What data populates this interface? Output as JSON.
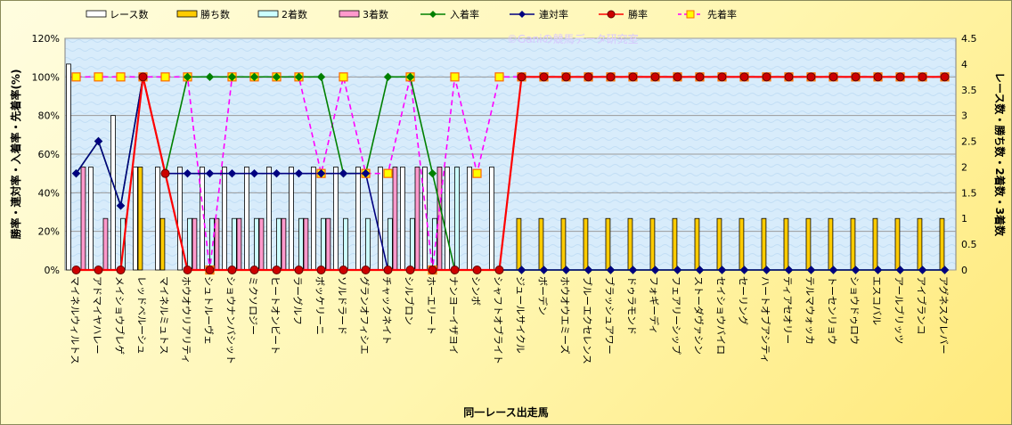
{
  "chart_data": {
    "type": "bar",
    "xlabel": "同一レース出走馬",
    "ylabel_left": "勝率・連対率・入着率・先着率(%)",
    "ylabel_right": "レース数・勝ち数・2着数・3着数",
    "watermark": "©Ganiの競馬データ研究室",
    "ylim_left": [
      0,
      120
    ],
    "ylim_right": [
      0,
      4.5
    ],
    "yticks_left": [
      "0%",
      "20%",
      "40%",
      "60%",
      "80%",
      "100%",
      "120%"
    ],
    "yticks_right": [
      "0",
      "0.5",
      "1",
      "1.5",
      "2",
      "2.5",
      "3",
      "3.5",
      "4",
      "4.5"
    ],
    "grid": true,
    "legend_position": "top",
    "legend": [
      "レース数",
      "勝ち数",
      "2着数",
      "3着数",
      "入着率",
      "連対率",
      "勝率",
      "先着率"
    ],
    "categories": [
      "マイネルウィルトス",
      "アドマイヤハレー",
      "メイショウブレゲ",
      "レッドベルーシュ",
      "マイネルミュトス",
      "ホウオウリアリティ",
      "シュトルーヴェ",
      "ショウナンバシット",
      "ミクソロジー",
      "ヒートオンビート",
      "ラーグルフ",
      "ボッケリーニ",
      "ソルドラード",
      "グランオフィシエ",
      "チャックネイト",
      "シルブロン",
      "ホーエリート",
      "ナンヨーイザヨイ",
      "シンボ",
      "シャフトオブライト",
      "ジュールサイクル",
      "ボーデン",
      "ホウオウエミーズ",
      "ブルーエクセレンス",
      "ブラッシュアワー",
      "ドゥラモンド",
      "フォギーディ",
      "フェアリーシップ",
      "ストーダヴァシン",
      "セイショウバイロ",
      "セーリング",
      "ハートオブアシティ",
      "ティアセオリー",
      "テルマウォッカ",
      "トーセンリョウ",
      "ショウドゥロウ",
      "エスコバル",
      "アールブリッツ",
      "アイブランコ",
      "アグネスクレバー"
    ],
    "series": [
      {
        "name": "レース数",
        "axis": "right",
        "kind": "bar",
        "color": "#ffffff",
        "values": [
          4,
          2,
          3,
          2,
          2,
          2,
          2,
          2,
          2,
          2,
          2,
          2,
          2,
          2,
          2,
          2,
          2,
          2,
          2,
          2,
          0,
          0,
          0,
          0,
          0,
          0,
          0,
          0,
          0,
          0,
          0,
          0,
          0,
          0,
          0,
          0,
          0,
          0,
          0,
          0
        ]
      },
      {
        "name": "勝ち数",
        "axis": "right",
        "kind": "bar",
        "color": "#ffcc00",
        "values": [
          0,
          0,
          0,
          2,
          1,
          0,
          0,
          0,
          0,
          0,
          0,
          0,
          0,
          0,
          0,
          0,
          0,
          0,
          0,
          0,
          1,
          1,
          1,
          1,
          1,
          1,
          1,
          1,
          1,
          1,
          1,
          1,
          1,
          1,
          1,
          1,
          1,
          1,
          1,
          1
        ]
      },
      {
        "name": "2着数",
        "axis": "right",
        "kind": "bar",
        "color": "#ccffff",
        "values": [
          0,
          0,
          1,
          0,
          0,
          1,
          1,
          1,
          1,
          1,
          1,
          1,
          1,
          1,
          1,
          1,
          1,
          2,
          0,
          0,
          0,
          0,
          0,
          0,
          0,
          0,
          0,
          0,
          0,
          0,
          0,
          0,
          0,
          0,
          0,
          0,
          0,
          0,
          0,
          0
        ]
      },
      {
        "name": "3着数",
        "axis": "right",
        "kind": "bar",
        "color": "#ff99cc",
        "values": [
          2,
          1,
          0,
          0,
          0,
          1,
          1,
          1,
          1,
          1,
          1,
          1,
          0,
          0,
          2,
          2,
          2,
          0,
          0,
          0,
          0,
          0,
          0,
          0,
          0,
          0,
          0,
          0,
          0,
          0,
          0,
          0,
          0,
          0,
          0,
          0,
          0,
          0,
          0,
          0
        ]
      },
      {
        "name": "入着率",
        "axis": "left",
        "kind": "line",
        "color": "#008000",
        "marker": "diamond",
        "values": [
          50,
          66.7,
          33.3,
          100,
          50,
          100,
          100,
          100,
          100,
          100,
          100,
          100,
          50,
          50,
          100,
          100,
          50,
          0,
          0,
          0,
          0,
          0,
          0,
          0,
          0,
          0,
          0,
          0,
          0,
          0,
          0,
          0,
          0,
          0,
          0,
          0,
          0,
          0,
          0,
          0
        ]
      },
      {
        "name": "連対率",
        "axis": "left",
        "kind": "line",
        "color": "#000080",
        "marker": "diamond",
        "values": [
          50,
          66.7,
          33.3,
          100,
          50,
          50,
          50,
          50,
          50,
          50,
          50,
          50,
          50,
          50,
          0,
          0,
          0,
          0,
          0,
          0,
          0,
          0,
          0,
          0,
          0,
          0,
          0,
          0,
          0,
          0,
          0,
          0,
          0,
          0,
          0,
          0,
          0,
          0,
          0,
          0
        ]
      },
      {
        "name": "勝率",
        "axis": "left",
        "kind": "line",
        "color": "#ff0000",
        "marker": "circle",
        "values": [
          0,
          0,
          0,
          100,
          50,
          0,
          0,
          0,
          0,
          0,
          0,
          0,
          0,
          0,
          0,
          0,
          0,
          0,
          0,
          0,
          100,
          100,
          100,
          100,
          100,
          100,
          100,
          100,
          100,
          100,
          100,
          100,
          100,
          100,
          100,
          100,
          100,
          100,
          100,
          100
        ]
      },
      {
        "name": "先着率",
        "axis": "left",
        "kind": "line",
        "color": "#ff00ff",
        "marker": "square",
        "dashed": true,
        "values": [
          100,
          100,
          100,
          100,
          100,
          100,
          0,
          100,
          100,
          100,
          100,
          50,
          100,
          50,
          50,
          100,
          0,
          100,
          50,
          100,
          100,
          100,
          100,
          100,
          100,
          100,
          100,
          100,
          100,
          100,
          100,
          100,
          100,
          100,
          100,
          100,
          100,
          100,
          100,
          100
        ]
      }
    ]
  }
}
